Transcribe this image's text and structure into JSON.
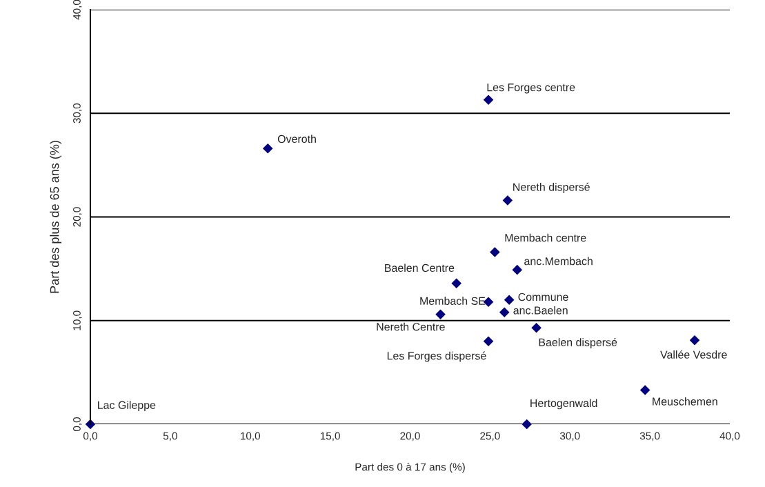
{
  "chart_data": {
    "type": "scatter",
    "xlabel": "Part des 0 à 17 ans (%)",
    "ylabel": "Part des plus de 65 ans (%)",
    "x": [
      0.0,
      11.1,
      24.9,
      26.1,
      25.3,
      26.7,
      22.9,
      24.9,
      26.2,
      21.9,
      25.9,
      27.9,
      24.9,
      37.8,
      34.7,
      27.3
    ],
    "series": [
      {
        "color": "#000080",
        "values": [
          0.0,
          26.6,
          31.3,
          21.6,
          16.6,
          14.9,
          13.6,
          11.8,
          12.0,
          10.6,
          10.8,
          9.3,
          8.0,
          8.1,
          3.3,
          0.0
        ]
      }
    ],
    "marker": "diamond",
    "grid": "y",
    "xlim": [
      0,
      40
    ],
    "xticks": [
      {
        "value": 0,
        "label": "0,0"
      },
      {
        "value": 5,
        "label": "5,0"
      },
      {
        "value": 10,
        "label": "10,0"
      },
      {
        "value": 15,
        "label": "15,0"
      },
      {
        "value": 20,
        "label": "20,0"
      },
      {
        "value": 25,
        "label": "25,0"
      },
      {
        "value": 30,
        "label": "30,0"
      },
      {
        "value": 35,
        "label": "35,0"
      },
      {
        "value": 40,
        "label": "40,0"
      }
    ],
    "ylim": [
      0,
      40
    ],
    "yticks": [
      {
        "value": 0,
        "label": "0,0"
      },
      {
        "value": 10,
        "label": "10,0"
      },
      {
        "value": 20,
        "label": "20,0"
      },
      {
        "value": 30,
        "label": "30,0"
      },
      {
        "value": 40,
        "label": "40,0"
      }
    ],
    "annotations": [
      {
        "text": "Lac Gileppe",
        "x": 0.0,
        "y": 0.0
      },
      {
        "text": "Overoth",
        "x": 11.1,
        "y": 26.6
      },
      {
        "text": "Les Forges centre",
        "x": 24.9,
        "y": 31.3
      },
      {
        "text": "Nereth dispersé",
        "x": 26.1,
        "y": 21.6
      },
      {
        "text": "Membach centre",
        "x": 25.3,
        "y": 16.6
      },
      {
        "text": "anc.Membach",
        "x": 26.7,
        "y": 14.9
      },
      {
        "text": "Baelen Centre",
        "x": 22.9,
        "y": 13.6
      },
      {
        "text": "Membach SE",
        "x": 24.9,
        "y": 11.8
      },
      {
        "text": "Commune",
        "x": 26.2,
        "y": 12.0
      },
      {
        "text": "Nereth Centre",
        "x": 21.9,
        "y": 10.6
      },
      {
        "text": "anc.Baelen",
        "x": 25.9,
        "y": 10.8
      },
      {
        "text": "Baelen dispersé",
        "x": 27.9,
        "y": 9.3
      },
      {
        "text": "Les Forges dispersé",
        "x": 24.9,
        "y": 8.0
      },
      {
        "text": "Vallée Vesdre",
        "x": 37.8,
        "y": 8.1
      },
      {
        "text": "Meuschemen",
        "x": 34.7,
        "y": 3.3
      },
      {
        "text": "Hertogenwald",
        "x": 27.3,
        "y": 0.0
      }
    ]
  }
}
